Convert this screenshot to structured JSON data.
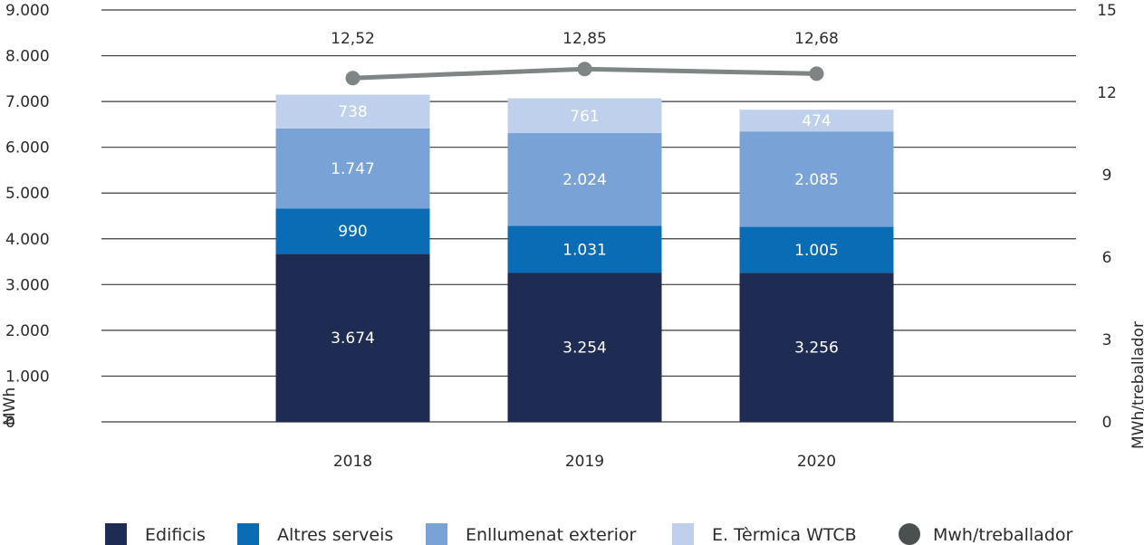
{
  "chart_data": {
    "type": "bar",
    "stacked": true,
    "categories": [
      "2018",
      "2019",
      "2020"
    ],
    "series": [
      {
        "name": "Edificis",
        "values": [
          3674,
          3254,
          3256
        ],
        "labels": [
          "3.674",
          "3.254",
          "3.256"
        ],
        "color": "#1e2b52"
      },
      {
        "name": "Altres serveis",
        "values": [
          990,
          1031,
          1005
        ],
        "labels": [
          "990",
          "1.031",
          "1.005"
        ],
        "color": "#0a6cb4"
      },
      {
        "name": "Enllumenat exterior",
        "values": [
          1747,
          2024,
          2085
        ],
        "labels": [
          "1.747",
          "2.024",
          "2.085"
        ],
        "color": "#79a3d6"
      },
      {
        "name": "E. Tèrmica WTCB",
        "values": [
          738,
          761,
          474
        ],
        "labels": [
          "738",
          "761",
          "474"
        ],
        "color": "#bfd0ec"
      }
    ],
    "line_series": {
      "name": "Mwh/treballador",
      "values": [
        12.52,
        12.85,
        12.68
      ],
      "labels": [
        "12,52",
        "12,85",
        "12,68"
      ],
      "color": "#7f8585",
      "axis": "right"
    },
    "ylabel": "MWh",
    "y2label": "MWh/treballador",
    "ylim": [
      0,
      9000
    ],
    "y2lim": [
      0,
      15
    ],
    "yticks": [
      "0",
      "1.000",
      "2.000",
      "3.000",
      "4.000",
      "5.000",
      "6.000",
      "7.000",
      "8.000",
      "9.000"
    ],
    "y2ticks": [
      "0",
      "3",
      "6",
      "9",
      "12",
      "15"
    ],
    "grid": true,
    "legend_position": "bottom"
  }
}
